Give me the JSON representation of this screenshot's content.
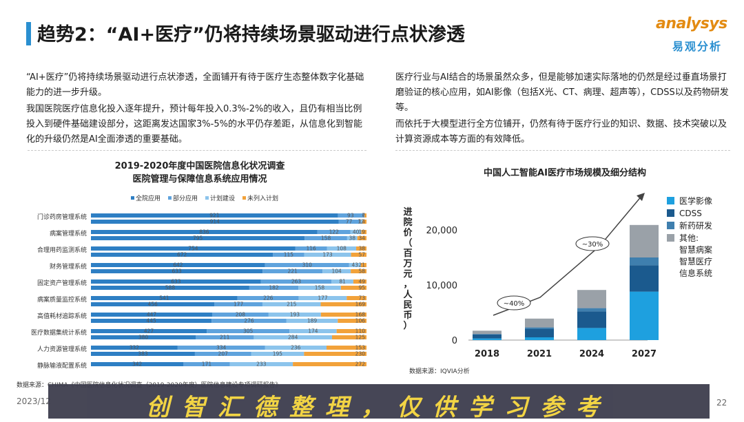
{
  "header": {
    "title": "趋势2：“AI+医疗”仍将持续场景驱动进行点状渗透",
    "logo_en": "analysys",
    "logo_cn": "易观分析"
  },
  "left_text": {
    "p1": "“AI+医疗”仍将持续场景驱动进行点状渗透，全面铺开有待于医疗生态整体数字化基础能力的进一步升级。",
    "p2": "我国医院医疗信息化投入逐年提升，预计每年投入0.3%-2%的收入，且仍有相当比例投入到硬件基础建设部分，这距离发达国家3%-5%的水平仍存差距，从信息化到智能化的升级仍然是AI全面渗透的重要基础。"
  },
  "right_text": {
    "p1": "医疗行业与AI结合的场景虽然众多，但是能够加速实际落地的仍然是经过垂直场景打磨验证的核心应用，如AI影像（包括X光、CT、病理、超声等），CDSS以及药物研发等。",
    "p2": "而依托于大模型进行全方位铺开，仍然有待于医疗行业的知识、数据、技术突破以及计算资源成本等方面的有效降低。"
  },
  "chart_data": [
    {
      "type": "bar",
      "stacked": true,
      "orientation": "horizontal",
      "title": "2019-2020年度中国医院信息化状况调查",
      "subtitle": "医院管理与保障信息系统应用情况",
      "legend": [
        "全院应用",
        "部分应用",
        "计划建设",
        "未列入计划"
      ],
      "colors": [
        "#2e7fc4",
        "#5fa3dd",
        "#8cc4ec",
        "#f2a23a"
      ],
      "categories": [
        "门诊药房管理系统",
        "病案管理系统",
        "合理用药监测系统",
        "财务管理系统",
        "固定资产管理系统",
        "病案质量监控系统",
        "高值耗材追踪系统",
        "医疗数据集统计系统",
        "人力资源管理系统",
        "静脉输液配置系统"
      ],
      "rows": [
        {
          "label": "门诊药房管理系统",
          "bars": [
            [
              921,
              93,
              6,
              7
            ],
            [
              914,
              77,
              12,
              14
            ]
          ]
        },
        {
          "label": "病案管理系统",
          "bars": [
            [
              836,
              122,
              40,
              19
            ],
            [
              795,
              158,
              38,
              34
            ]
          ]
        },
        {
          "label": "合理用药监测系统",
          "bars": [
            [
              754,
              116,
              108,
              38
            ],
            [
              672,
              115,
              173,
              57
            ]
          ]
        },
        {
          "label": "财务管理系统",
          "bars": [
            [
              642,
              310,
              43,
              21
            ],
            [
              633,
              221,
              104,
              58
            ]
          ]
        },
        {
          "label": "固定资产管理系统",
          "bars": [
            [
              633,
              263,
              81,
              49
            ],
            [
              588,
              182,
              158,
              95
            ]
          ]
        },
        {
          "label": "病案质量监控系统",
          "bars": [
            [
              541,
              226,
              177,
              73
            ],
            [
              456,
              177,
              215,
              169
            ]
          ]
        },
        {
          "label": "高值耗材追踪系统",
          "bars": [
            [
              447,
              208,
              193,
              168
            ],
            [
              445,
              276,
              189,
              106
            ]
          ]
        },
        {
          "label": "医疗数据集统计系统",
          "bars": [
            [
              427,
              305,
              174,
              110
            ],
            [
              380,
              211,
              284,
              125
            ]
          ]
        },
        {
          "label": "人力资源管理系统",
          "bars": [
            [
              332,
              334,
              236,
              153
            ],
            [
              383,
              207,
              195,
              230
            ]
          ]
        },
        {
          "label": "静脉输液配置系统",
          "bars": [
            [
              342,
              171,
              233,
              272
            ]
          ]
        }
      ]
    },
    {
      "type": "bar",
      "stacked": true,
      "title": "中国人工智能AI医疗市场规模及细分结构",
      "ylabel": "进院价（百万元，人民币）",
      "categories": [
        "2018",
        "2021",
        "2024",
        "2027"
      ],
      "ylim": [
        0,
        25000
      ],
      "yticks": [
        0,
        10000,
        20000
      ],
      "ytick_labels": [
        "0",
        "10,000",
        "20,000"
      ],
      "series": [
        {
          "name": "医学影像",
          "color": "#1ea0df",
          "values": [
            300,
            500,
            2200,
            8800
          ]
        },
        {
          "name": "CDSS",
          "color": "#1b5a8e",
          "values": [
            700,
            1500,
            3000,
            4800
          ]
        },
        {
          "name": "新药研发",
          "color": "#3f7fae",
          "values": [
            100,
            300,
            600,
            1400
          ]
        },
        {
          "name": "其他：智慧病案智慧医疗信息系统",
          "color": "#9aa1a8",
          "values": [
            600,
            1600,
            3300,
            5900
          ]
        }
      ],
      "legend_lines": [
        "医学影像",
        "CDSS",
        "新药研发",
        "其他:",
        "智慧病案",
        "智慧医疗",
        "信息系统"
      ],
      "annotations": [
        "~40%",
        "~30%"
      ]
    }
  ],
  "sources": {
    "left": "数据来源：CHIMA《中国医院信息化状况调查（2019-2020年度）医院信息建设专项调研报告》",
    "right": "数据来源：IQVIA分析"
  },
  "footer": {
    "date": "2023/12",
    "page": "22",
    "watermark": "创智汇德整理，仅供学习参考"
  }
}
